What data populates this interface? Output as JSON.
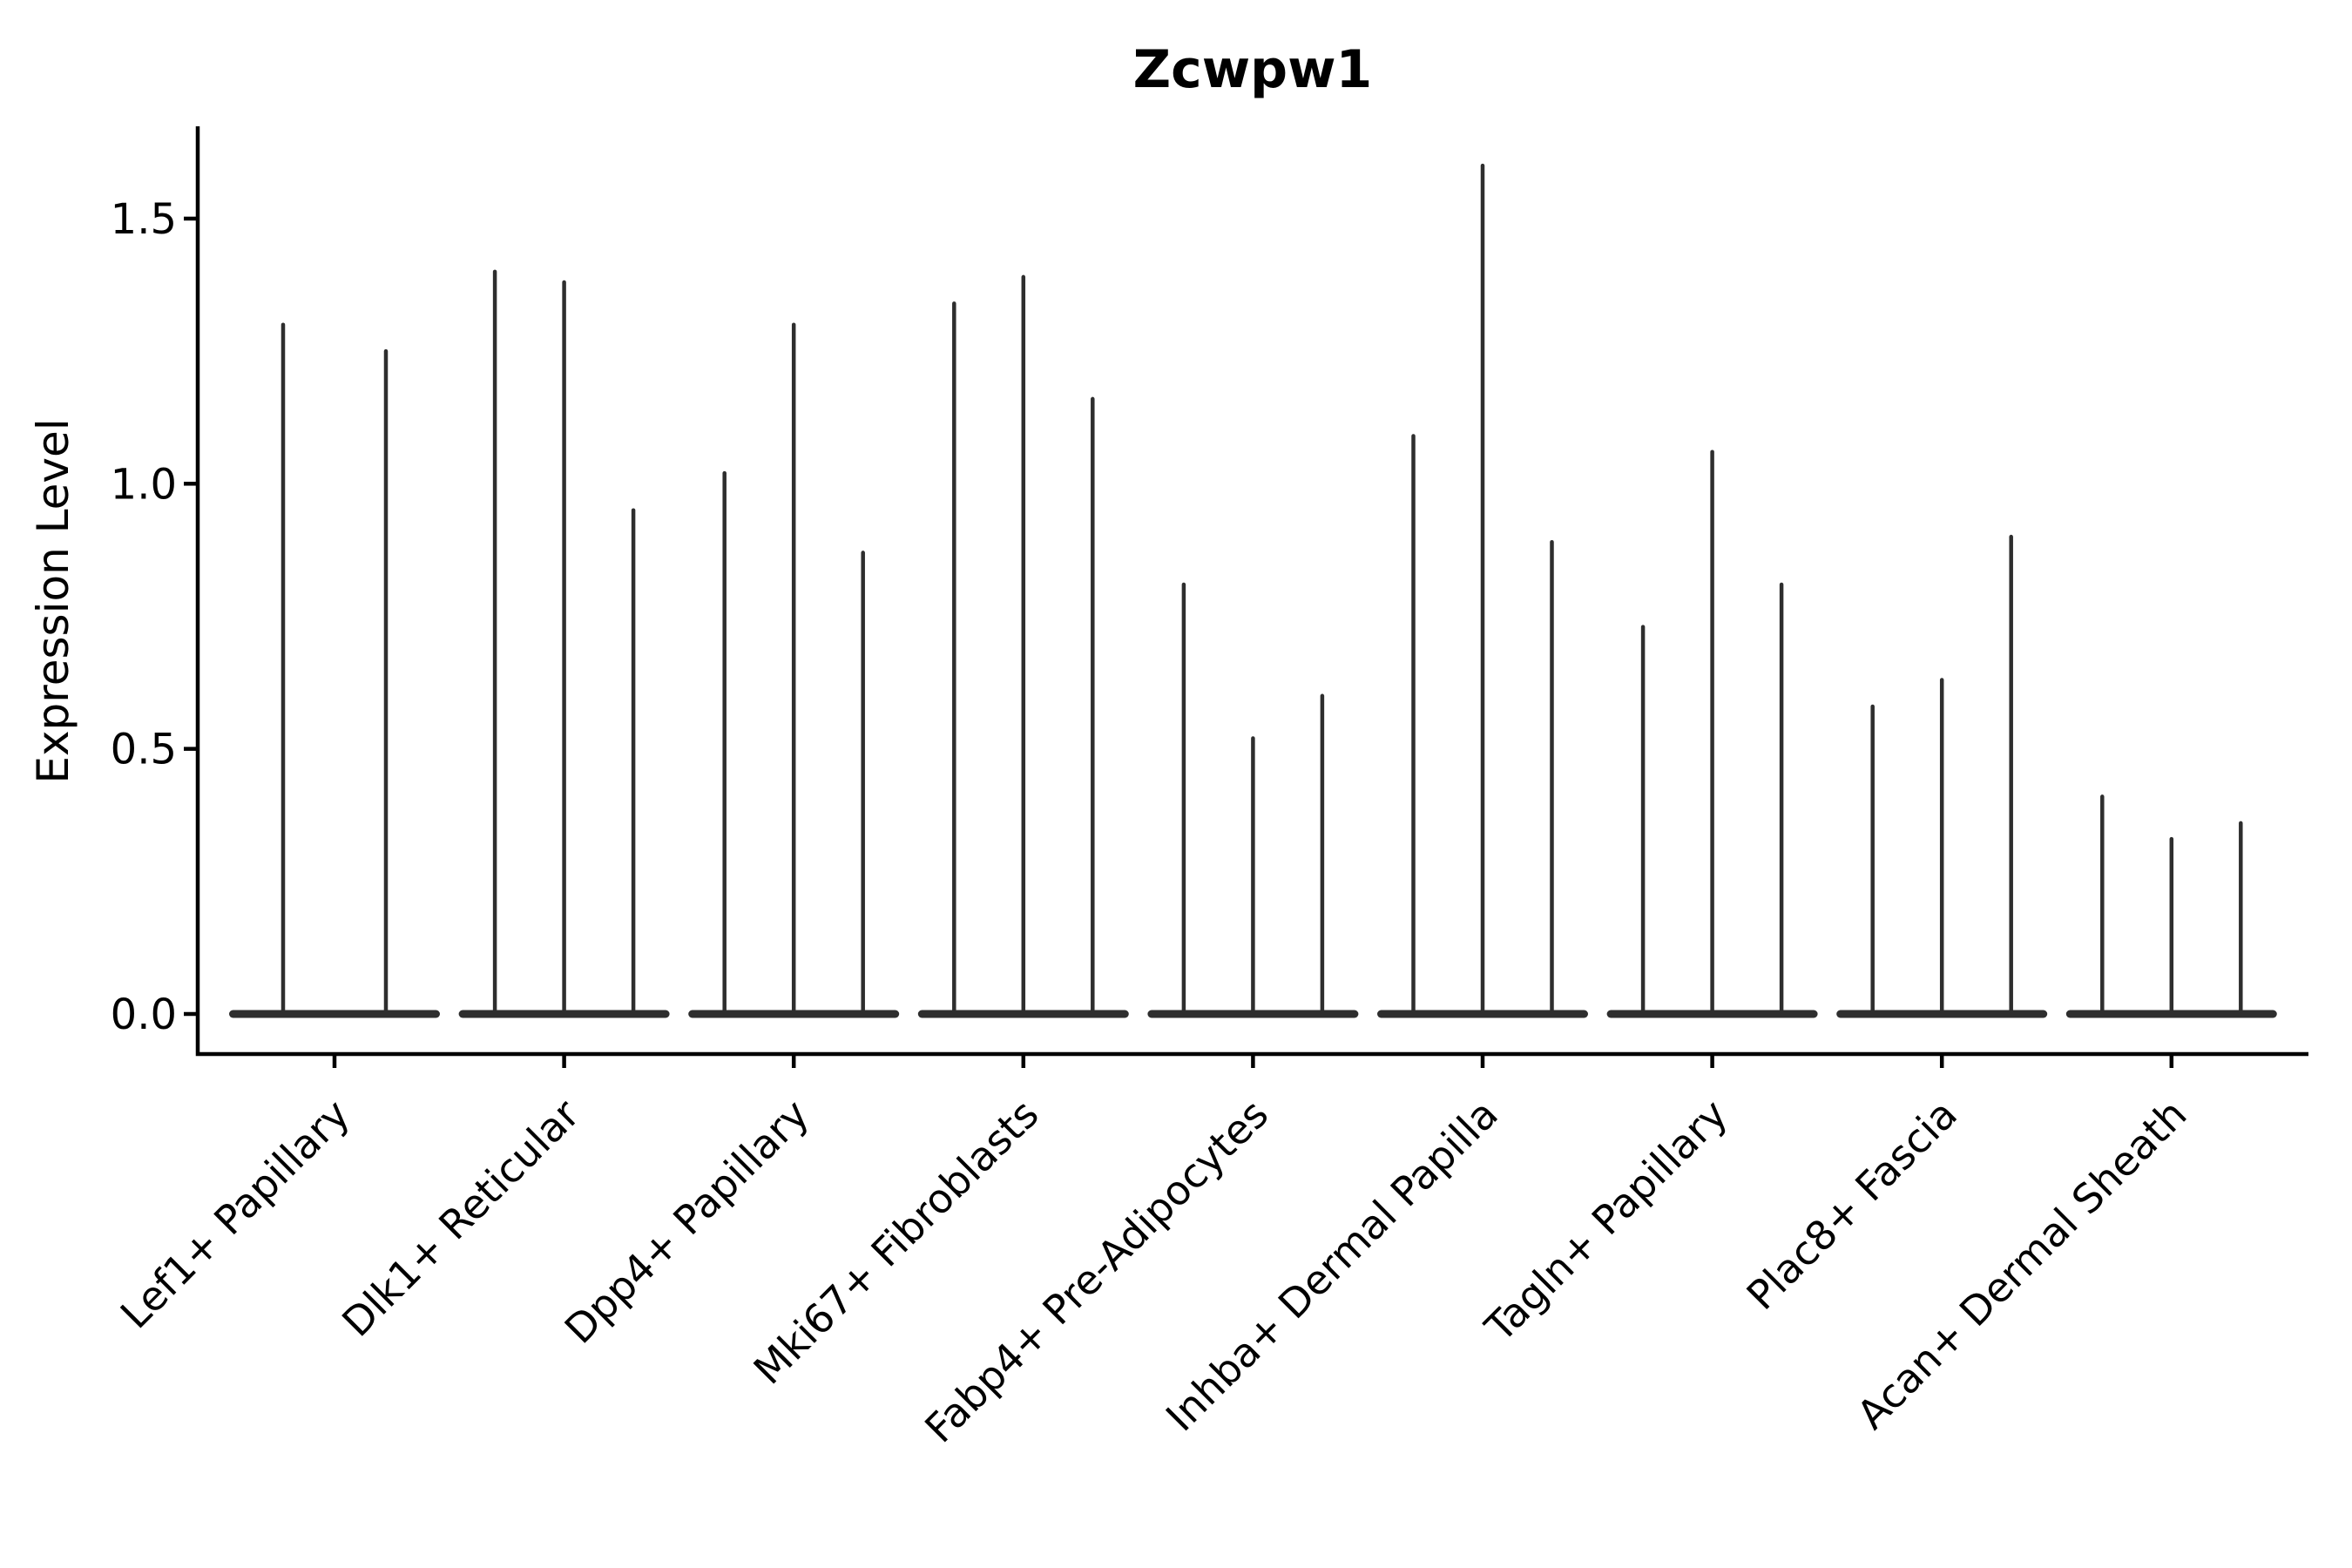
{
  "chart_data": {
    "type": "violin",
    "title": "Zcwpw1",
    "xlabel": "",
    "ylabel": "Expression Level",
    "ylim": [
      0,
      1.67
    ],
    "yticks": [
      "0.0",
      "0.5",
      "1.0",
      "1.5"
    ],
    "ytick_values": [
      0.0,
      0.5,
      1.0,
      1.5
    ],
    "grid": false,
    "legend": "none",
    "categories": [
      "Lef1+ Papillary",
      "Dlk1+ Reticular",
      "Dpp4+ Papillary",
      "Mki67+ Fibroblasts",
      "Fabp4+ Pre-Adipocytes",
      "Inhba+ Dermal Papilla",
      "Tagln+ Papillary",
      "Plac8+ Fascia",
      "Acan+ Dermal Sheath"
    ],
    "groups": [
      {
        "category": "Lef1+ Papillary",
        "violin_max_values": [
          1.3,
          1.25
        ]
      },
      {
        "category": "Dlk1+ Reticular",
        "violin_max_values": [
          1.4,
          1.38,
          0.95
        ]
      },
      {
        "category": "Dpp4+ Papillary",
        "violin_max_values": [
          1.02,
          1.3,
          0.87
        ]
      },
      {
        "category": "Mki67+ Fibroblasts",
        "violin_max_values": [
          1.34,
          1.39,
          1.16
        ]
      },
      {
        "category": "Fabp4+ Pre-Adipocytes",
        "violin_max_values": [
          0.81,
          0.52,
          0.6
        ]
      },
      {
        "category": "Inhba+ Dermal Papilla",
        "violin_max_values": [
          1.09,
          1.6,
          0.89
        ]
      },
      {
        "category": "Tagln+ Papillary",
        "violin_max_values": [
          0.73,
          1.06,
          0.81
        ]
      },
      {
        "category": "Plac8+ Fascia",
        "violin_max_values": [
          0.58,
          0.63,
          0.9
        ]
      },
      {
        "category": "Acan+ Dermal Sheath",
        "violin_max_values": [
          0.41,
          0.33,
          0.36
        ]
      }
    ],
    "violin_shape_note": "each violin is a flat base lens at y=0 with a thin vertical spike to its max value"
  },
  "style": {
    "violin_color": "#2e2e2e",
    "axis_color": "#000000",
    "text_color": "#000000",
    "background": "#ffffff"
  }
}
